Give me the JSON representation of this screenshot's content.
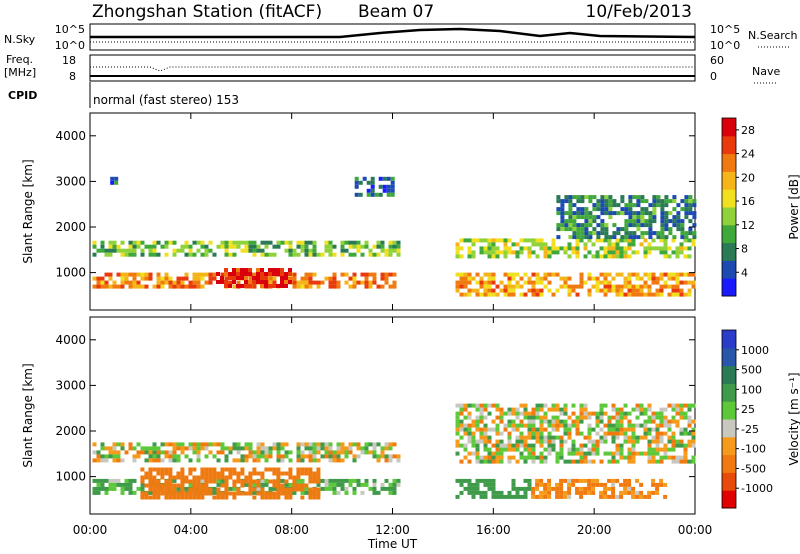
{
  "header": {
    "station": "Zhongshan Station (fitACF)",
    "beam": "Beam 07",
    "date": "10/Feb/2013"
  },
  "strip_panels": {
    "nsky_label": "N.Sky",
    "nsky_ticks": [
      "10^5",
      "10^0"
    ],
    "nsearch_label": "N.Search",
    "nsearch_ticks": [
      "10^5",
      "10^0"
    ],
    "freq_label": "Freq.",
    "freq_unit": "[MHz]",
    "freq_ticks": [
      "18",
      "8"
    ],
    "nave_label": "Nave",
    "nave_ticks": [
      "60",
      "0"
    ],
    "cpid_label": "CPID",
    "cpid_text": "normal (fast stereo) 153"
  },
  "colors": {
    "power_scale": [
      "#1a1aff",
      "#1c4ab0",
      "#2a7a55",
      "#3fa83a",
      "#8fd23a",
      "#f0e020",
      "#f5b51a",
      "#f07a10",
      "#e83a0c",
      "#d8000a"
    ],
    "velocity_scale": [
      "#2a3cc8",
      "#2856a8",
      "#2a7a55",
      "#3f9a4a",
      "#5cc83a",
      "#c8c8c0",
      "#f59a1a",
      "#f07a10",
      "#e84a0c",
      "#e00000"
    ]
  },
  "chart_data": [
    {
      "type": "heatmap",
      "name": "Power",
      "ylabel": "Slant Range [km]",
      "yticks": [
        "4000",
        "3000",
        "2000",
        "1000"
      ],
      "xticks": [
        "00:00",
        "04:00",
        "08:00",
        "12:00",
        "16:00",
        "20:00",
        "00:00"
      ],
      "xlim": [
        0,
        24
      ],
      "ylim": [
        180,
        4500
      ],
      "colorbar_label": "Power [dB]",
      "colorbar_ticks": [
        "28",
        "24",
        "20",
        "16",
        "12",
        "8",
        "4"
      ],
      "colorbar_range": [
        0,
        30
      ],
      "regions": [
        {
          "x0": 0.1,
          "x1": 12.3,
          "y0": 650,
          "y1": 1000,
          "value": 22
        },
        {
          "x0": 0.1,
          "x1": 12.3,
          "y0": 1350,
          "y1": 1700,
          "value": 12
        },
        {
          "x0": 5.0,
          "x1": 8.0,
          "y0": 700,
          "y1": 1100,
          "value": 28
        },
        {
          "x0": 14.5,
          "x1": 23.9,
          "y0": 550,
          "y1": 1000,
          "value": 20
        },
        {
          "x0": 14.5,
          "x1": 23.9,
          "y0": 1350,
          "y1": 1750,
          "value": 14
        },
        {
          "x0": 18.5,
          "x1": 23.9,
          "y0": 1800,
          "y1": 2700,
          "value": 8
        },
        {
          "x0": 0.8,
          "x1": 1.0,
          "y0": 2950,
          "y1": 3100,
          "value": 6
        },
        {
          "x0": 10.5,
          "x1": 12.0,
          "y0": 2700,
          "y1": 3100,
          "value": 6
        }
      ]
    },
    {
      "type": "heatmap",
      "name": "Velocity",
      "ylabel": "Slant Range [km]",
      "xlabel": "Time UT",
      "yticks": [
        "4000",
        "3000",
        "2000",
        "1000"
      ],
      "xticks": [
        "00:00",
        "04:00",
        "08:00",
        "12:00",
        "16:00",
        "20:00",
        "00:00"
      ],
      "xlim": [
        0,
        24
      ],
      "ylim": [
        180,
        4500
      ],
      "colorbar_label": "Velocity [m s⁻¹]",
      "colorbar_ticks": [
        "1000",
        "500",
        "100",
        "25",
        "-25",
        "-100",
        "-500",
        "-1000"
      ],
      "regions": [
        {
          "x0": 0.1,
          "x1": 12.3,
          "y0": 1350,
          "y1": 1750,
          "value": 0
        },
        {
          "x0": 0.1,
          "x1": 12.3,
          "y0": 600,
          "y1": 950,
          "value": 150
        },
        {
          "x0": 2.0,
          "x1": 9.0,
          "y0": 500,
          "y1": 1200,
          "value": -300
        },
        {
          "x0": 14.5,
          "x1": 23.9,
          "y0": 1350,
          "y1": 2600,
          "value": 0
        },
        {
          "x0": 14.5,
          "x1": 17.5,
          "y0": 550,
          "y1": 950,
          "value": 300
        },
        {
          "x0": 17.5,
          "x1": 22.8,
          "y0": 550,
          "y1": 950,
          "value": -150
        }
      ]
    }
  ]
}
